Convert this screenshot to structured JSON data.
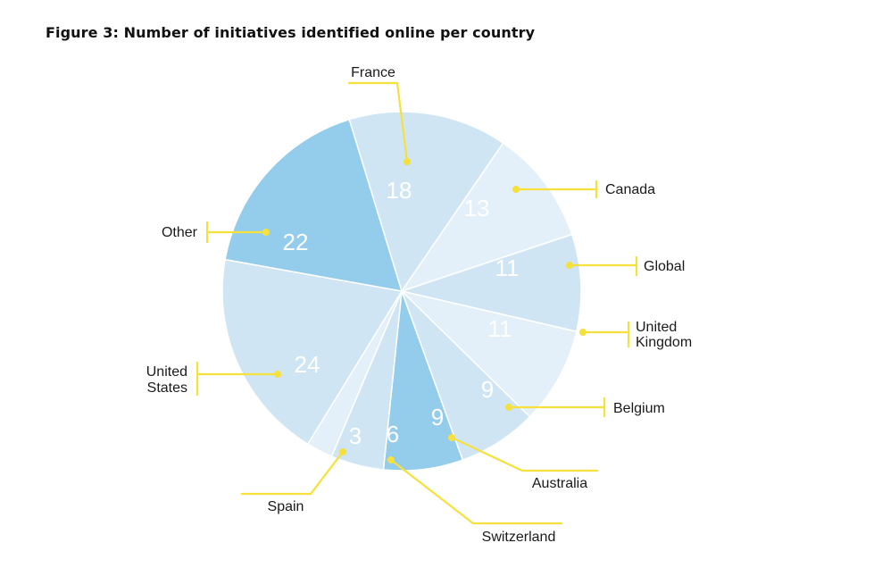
{
  "title": "Figure 3: Number of initiatives identified online per country",
  "chart_data": {
    "type": "pie",
    "title": "Figure 3: Number of initiatives identified online per country",
    "slices": [
      {
        "label": "France",
        "value": 18,
        "color": "#cfe5f4"
      },
      {
        "label": "Canada",
        "value": 13,
        "color": "#e3f0fa"
      },
      {
        "label": "Global",
        "value": 11,
        "color": "#cfe5f4"
      },
      {
        "label": "United Kingdom",
        "value": 11,
        "color": "#e3f0fa"
      },
      {
        "label": "Belgium",
        "value": 9,
        "color": "#cfe5f4"
      },
      {
        "label": "Australia",
        "value": 9,
        "color": "#94cdeb"
      },
      {
        "label": "Switzerland",
        "value": 6,
        "color": "#cfe5f4"
      },
      {
        "label": "Spain",
        "value": 3,
        "color": "#e3f0fa"
      },
      {
        "label": "United States",
        "value": 24,
        "color": "#cfe5f4"
      },
      {
        "label": "Other",
        "value": 22,
        "color": "#94cdeb"
      }
    ],
    "leader_color": "#f5e03c"
  }
}
